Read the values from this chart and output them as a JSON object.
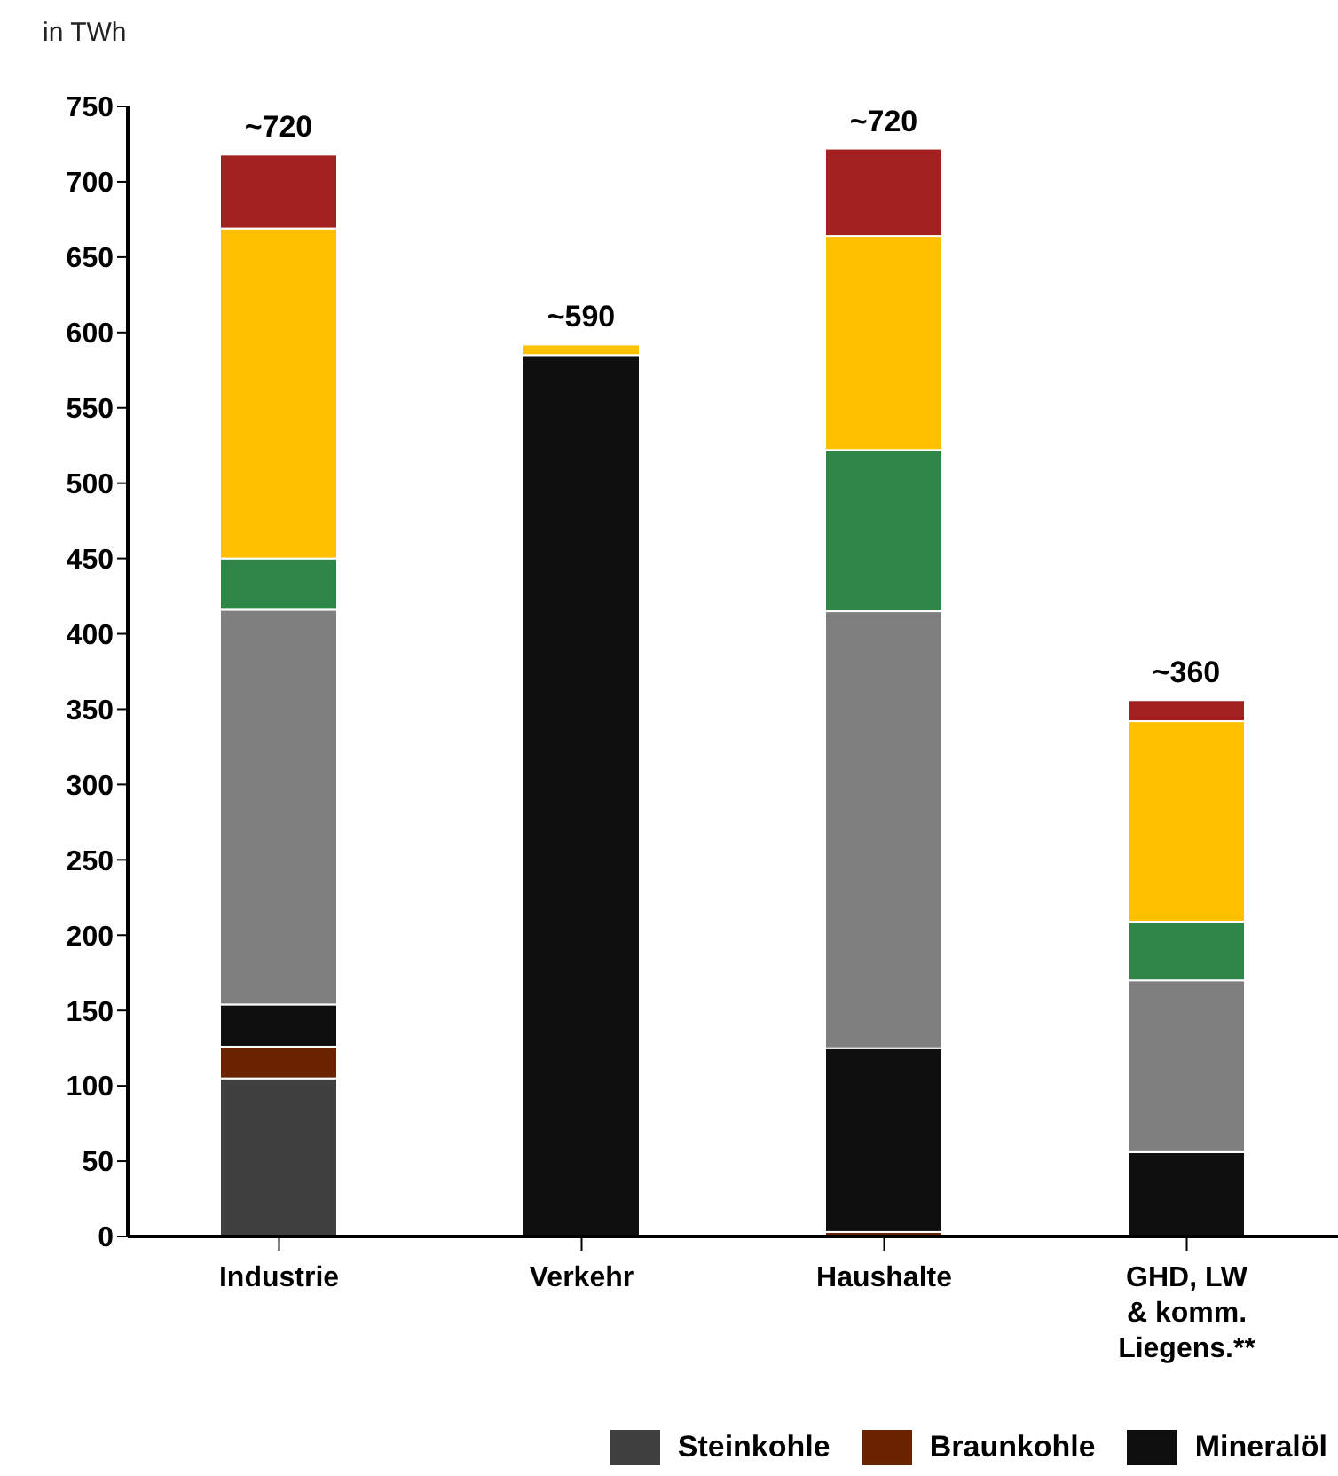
{
  "chart_data": {
    "type": "bar",
    "stacked": true,
    "ylabel": "in TWh",
    "categories": [
      "Industrie",
      "Verkehr",
      "Haushalte",
      "GHD, LW & komm. Liegens.**"
    ],
    "series": [
      {
        "name": "Steinkohle",
        "color": "#404040",
        "values": [
          105,
          0,
          0,
          0
        ]
      },
      {
        "name": "Braunkohle",
        "color": "#6b2400",
        "values": [
          21,
          0,
          3,
          0
        ]
      },
      {
        "name": "Mineralöl",
        "color": "#0f0f0f",
        "values": [
          28,
          585,
          122,
          56
        ]
      },
      {
        "color": "#7f7f7f",
        "values": [
          262,
          0,
          290,
          114
        ]
      },
      {
        "color": "#2e8747",
        "values": [
          34,
          0,
          107,
          39
        ]
      },
      {
        "color": "#ffc000",
        "values": [
          219,
          7,
          142,
          133
        ]
      },
      {
        "color": "#a32020",
        "values": [
          49,
          0,
          58,
          14
        ]
      }
    ],
    "totals": [
      "~720",
      "~590",
      "~720",
      "~360"
    ],
    "ylim": [
      0,
      750
    ],
    "yticks": [
      0,
      50,
      100,
      150,
      200,
      250,
      300,
      350,
      400,
      450,
      500,
      550,
      600,
      650,
      700,
      750
    ],
    "grid": false,
    "legend": "bottom right"
  }
}
